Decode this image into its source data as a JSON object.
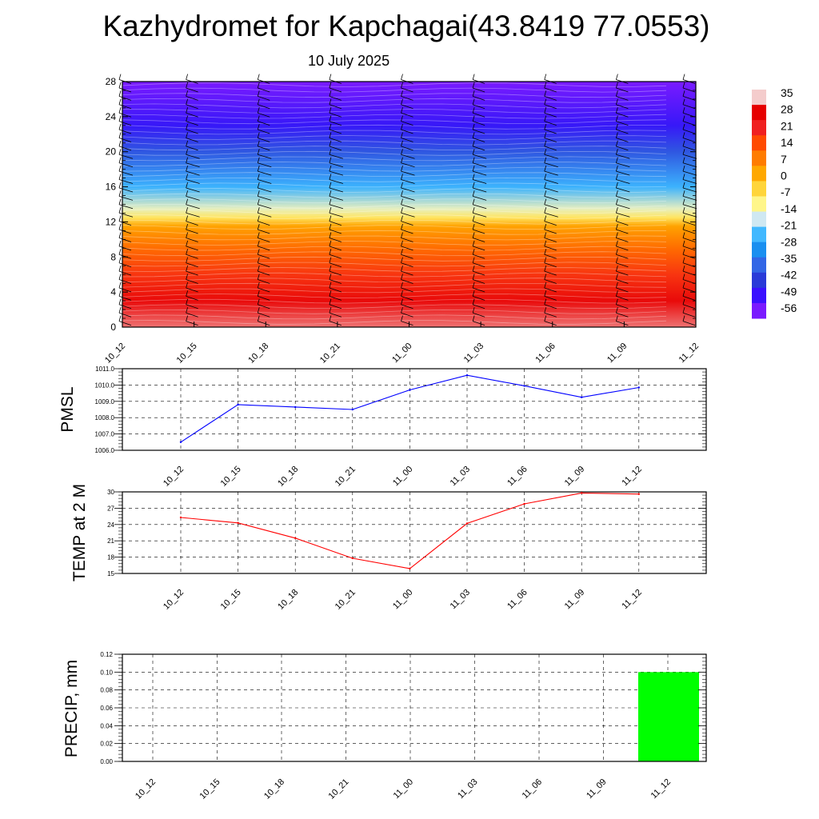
{
  "header": {
    "title": "Kazhydromet for Kapchagai(43.8419 77.0553)",
    "subtitle": "10 July 2025"
  },
  "chart_data": [
    {
      "type": "heatmap",
      "x_ticks": [
        "10_12",
        "10_15",
        "10_18",
        "10_21",
        "11_00",
        "11_03",
        "11_06",
        "11_09",
        "11_12"
      ],
      "ylim": [
        0,
        28
      ],
      "y_ticks": [
        "0",
        "4",
        "8",
        "12",
        "16",
        "20",
        "24",
        "28"
      ],
      "y_values": [
        0,
        4,
        8,
        12,
        16,
        20,
        24,
        28
      ],
      "colorbar": {
        "labels": [
          "35",
          "28",
          "21",
          "14",
          "7",
          "0",
          "-7",
          "-14",
          "-21",
          "-28",
          "-35",
          "-42",
          "-49",
          "-56"
        ],
        "colors": [
          "#f4cccc",
          "#e60000",
          "#f02020",
          "#ff4a00",
          "#ff7c00",
          "#ffa800",
          "#ffd53a",
          "#fff68a",
          "#cfe8f2",
          "#41b8ff",
          "#1a8ff0",
          "#3266e6",
          "#2a3ad8",
          "#3a10ff",
          "#7a1aff"
        ]
      },
      "profile": [
        {
          "h": 0,
          "t": 32
        },
        {
          "h": 3,
          "t": 26
        },
        {
          "h": 6,
          "t": 18
        },
        {
          "h": 9,
          "t": 10
        },
        {
          "h": 11.5,
          "t": 2
        },
        {
          "h": 12.5,
          "t": -9
        },
        {
          "h": 13.5,
          "t": -16
        },
        {
          "h": 16,
          "t": -27
        },
        {
          "h": 20,
          "t": -42
        },
        {
          "h": 23,
          "t": -52
        },
        {
          "h": 28,
          "t": -60
        }
      ]
    },
    {
      "type": "line",
      "ylabel": "PMSL",
      "x": [
        "10_12",
        "10_15",
        "10_18",
        "10_21",
        "11_00",
        "11_03",
        "11_06",
        "11_09",
        "11_12"
      ],
      "y": [
        1006.5,
        1008.8,
        1008.65,
        1008.5,
        1009.7,
        1010.6,
        1009.95,
        1009.25,
        1009.85
      ],
      "ylim": [
        1006.0,
        1011.0
      ],
      "y_ticks": [
        "1006.0",
        "1007.0",
        "1008.0",
        "1009.0",
        "1010.0",
        "1011.0"
      ],
      "y_tick_values": [
        1006,
        1007,
        1008,
        1009,
        1010,
        1011
      ],
      "color": "#0000ff",
      "grid": true
    },
    {
      "type": "line",
      "ylabel": "TEMP at 2 M",
      "x": [
        "10_12",
        "10_15",
        "10_18",
        "10_21",
        "11_00",
        "11_03",
        "11_06",
        "11_09",
        "11_12"
      ],
      "y": [
        25.3,
        24.3,
        21.5,
        17.8,
        15.9,
        24.2,
        27.8,
        29.8,
        29.6
      ],
      "ylim": [
        15,
        30
      ],
      "y_ticks": [
        "15",
        "18",
        "21",
        "24",
        "27",
        "30"
      ],
      "y_tick_values": [
        15,
        18,
        21,
        24,
        27,
        30
      ],
      "color": "#ff0000",
      "grid": true
    },
    {
      "type": "bar",
      "ylabel": "PRECIP, mm",
      "categories": [
        "10_12",
        "10_15",
        "10_18",
        "10_21",
        "11_00",
        "11_03",
        "11_06",
        "11_09",
        "11_12"
      ],
      "values": [
        0,
        0,
        0,
        0,
        0,
        0,
        0,
        0,
        0.1
      ],
      "ylim": [
        0,
        0.12
      ],
      "y_ticks": [
        "0.00",
        "0.02",
        "0.04",
        "0.06",
        "0.08",
        "0.10",
        "0.12"
      ],
      "y_tick_values": [
        0,
        0.02,
        0.04,
        0.06,
        0.08,
        0.1,
        0.12
      ],
      "color": "#00ff00",
      "grid": true
    }
  ]
}
